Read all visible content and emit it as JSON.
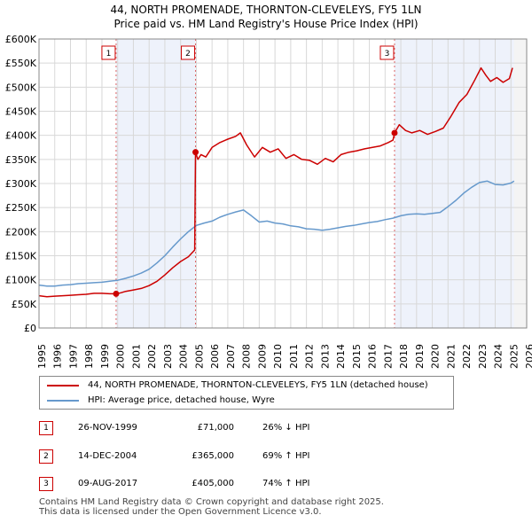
{
  "header": {
    "title_line1": "44, NORTH PROMENADE, THORNTON-CLEVELEYS, FY5 1LN",
    "title_line2": "Price paid vs. HM Land Registry's House Price Index (HPI)"
  },
  "colors": {
    "red": "#cc0000",
    "blue": "#6699cc",
    "shade": "#eef2fb"
  },
  "chart_data": {
    "type": "line",
    "title": "44, NORTH PROMENADE, THORNTON-CLEVELEYS, FY5 1LN",
    "subtitle": "Price paid vs. HM Land Registry's House Price Index (HPI)",
    "xlim": [
      1995,
      2026
    ],
    "ylim": [
      0,
      600000
    ],
    "x_ticks": [
      "1995",
      "1996",
      "1997",
      "1998",
      "1999",
      "2000",
      "2001",
      "2002",
      "2003",
      "2004",
      "2005",
      "2006",
      "2007",
      "2008",
      "2009",
      "2010",
      "2011",
      "2012",
      "2013",
      "2014",
      "2015",
      "2016",
      "2017",
      "2018",
      "2019",
      "2020",
      "2021",
      "2022",
      "2023",
      "2024",
      "2025",
      "2026"
    ],
    "y_ticks": [
      {
        "value": 0,
        "label": "£0"
      },
      {
        "value": 50000,
        "label": "£50K"
      },
      {
        "value": 100000,
        "label": "£100K"
      },
      {
        "value": 150000,
        "label": "£150K"
      },
      {
        "value": 200000,
        "label": "£200K"
      },
      {
        "value": 250000,
        "label": "£250K"
      },
      {
        "value": 300000,
        "label": "£300K"
      },
      {
        "value": 350000,
        "label": "£350K"
      },
      {
        "value": 400000,
        "label": "£400K"
      },
      {
        "value": 450000,
        "label": "£450K"
      },
      {
        "value": 500000,
        "label": "£500K"
      },
      {
        "value": 550000,
        "label": "£550K"
      },
      {
        "value": 600000,
        "label": "£600K"
      }
    ],
    "grid": true,
    "shaded_ranges": [
      [
        1999.9,
        2004.95
      ],
      [
        2017.6,
        2025.2
      ]
    ],
    "markers": [
      {
        "label": "1",
        "x": 1999.9,
        "y": 71000
      },
      {
        "label": "2",
        "x": 2004.95,
        "y": 365000
      },
      {
        "label": "3",
        "x": 2017.6,
        "y": 405000
      }
    ],
    "series": [
      {
        "name": "44, NORTH PROMENADE, THORNTON-CLEVELEYS, FY5 1LN (detached house)",
        "color": "#cc0000",
        "x": [
          1995,
          1995.5,
          1996,
          1996.5,
          1997,
          1997.5,
          1998,
          1998.5,
          1999,
          1999.5,
          1999.9,
          2000.2,
          2000.5,
          2001,
          2001.5,
          2002,
          2002.5,
          2003,
          2003.5,
          2004,
          2004.5,
          2004.9,
          2004.95,
          2005.1,
          2005.3,
          2005.6,
          2006,
          2006.5,
          2007,
          2007.5,
          2007.8,
          2008.2,
          2008.7,
          2009.2,
          2009.7,
          2010.2,
          2010.7,
          2011.2,
          2011.7,
          2012.2,
          2012.7,
          2013.2,
          2013.7,
          2014.2,
          2014.7,
          2015.2,
          2015.7,
          2016.2,
          2016.7,
          2017.2,
          2017.5,
          2017.6,
          2017.9,
          2018.3,
          2018.7,
          2019.2,
          2019.7,
          2020.2,
          2020.7,
          2021.2,
          2021.7,
          2022.2,
          2022.7,
          2023.1,
          2023.4,
          2023.7,
          2024.1,
          2024.5,
          2024.9,
          2025.1
        ],
        "y": [
          67000,
          65000,
          66000,
          67000,
          68000,
          69000,
          70000,
          72000,
          72000,
          71000,
          71000,
          73000,
          76000,
          79000,
          82000,
          88000,
          97000,
          110000,
          125000,
          138000,
          148000,
          162000,
          365000,
          350000,
          360000,
          355000,
          375000,
          385000,
          392000,
          398000,
          405000,
          380000,
          355000,
          375000,
          365000,
          372000,
          352000,
          360000,
          350000,
          348000,
          340000,
          352000,
          345000,
          360000,
          365000,
          368000,
          372000,
          375000,
          378000,
          385000,
          390000,
          405000,
          422000,
          410000,
          405000,
          410000,
          402000,
          408000,
          415000,
          440000,
          468000,
          485000,
          515000,
          540000,
          525000,
          512000,
          520000,
          510000,
          518000,
          540000
        ]
      },
      {
        "name": "HPI: Average price, detached house, Wyre",
        "color": "#6699cc",
        "x": [
          1995,
          1995.5,
          1996,
          1996.5,
          1997,
          1997.5,
          1998,
          1998.5,
          1999,
          1999.5,
          2000,
          2000.5,
          2001,
          2001.5,
          2002,
          2002.5,
          2003,
          2003.5,
          2004,
          2004.5,
          2005,
          2005.5,
          2006,
          2006.5,
          2007,
          2007.5,
          2008,
          2008.5,
          2009,
          2009.5,
          2010,
          2010.5,
          2011,
          2011.5,
          2012,
          2012.5,
          2013,
          2013.5,
          2014,
          2014.5,
          2015,
          2015.5,
          2016,
          2016.5,
          2017,
          2017.5,
          2018,
          2018.5,
          2019,
          2019.5,
          2020,
          2020.5,
          2021,
          2021.5,
          2022,
          2022.5,
          2023,
          2023.5,
          2024,
          2024.5,
          2025,
          2025.2
        ],
        "y": [
          89000,
          87000,
          87000,
          89000,
          90000,
          92000,
          93000,
          94000,
          95000,
          97000,
          99000,
          103000,
          108000,
          114000,
          122000,
          135000,
          150000,
          168000,
          185000,
          200000,
          213000,
          218000,
          222000,
          230000,
          236000,
          241000,
          245000,
          233000,
          220000,
          222000,
          218000,
          216000,
          212000,
          210000,
          206000,
          205000,
          203000,
          205000,
          208000,
          211000,
          213000,
          216000,
          219000,
          221000,
          225000,
          228000,
          233000,
          236000,
          237000,
          236000,
          238000,
          240000,
          252000,
          265000,
          280000,
          292000,
          302000,
          305000,
          298000,
          297000,
          301000,
          305000
        ]
      }
    ]
  },
  "legend": {
    "items": [
      {
        "label": "44, NORTH PROMENADE, THORNTON-CLEVELEYS, FY5 1LN (detached house)",
        "color": "#cc0000"
      },
      {
        "label": "HPI: Average price, detached house, Wyre",
        "color": "#6699cc"
      }
    ]
  },
  "table": {
    "rows": [
      {
        "num": "1",
        "date": "26-NOV-1999",
        "price": "£71,000",
        "hpi": "26% ↓ HPI"
      },
      {
        "num": "2",
        "date": "14-DEC-2004",
        "price": "£365,000",
        "hpi": "69% ↑ HPI"
      },
      {
        "num": "3",
        "date": "09-AUG-2017",
        "price": "£405,000",
        "hpi": "74% ↑ HPI"
      }
    ]
  },
  "footer": {
    "line1": "Contains HM Land Registry data © Crown copyright and database right 2025.",
    "line2": "This data is licensed under the Open Government Licence v3.0."
  }
}
